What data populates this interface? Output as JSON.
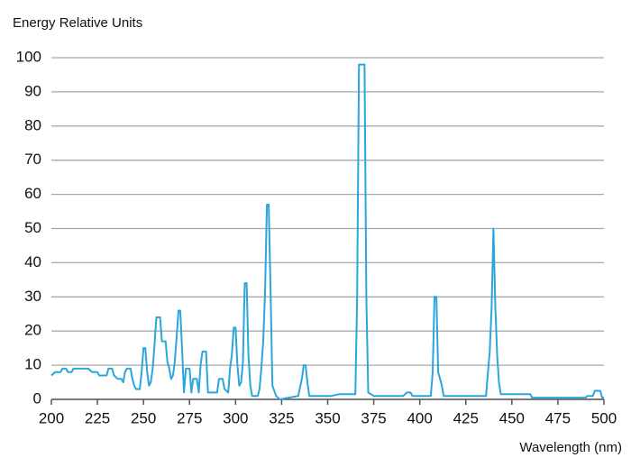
{
  "chart_data": {
    "type": "line",
    "y_label": "Energy Relative Units",
    "x_label": "Wavelength (nm)",
    "color": "#2aa6dc",
    "grid": true,
    "xlim": [
      200,
      500
    ],
    "xticks": [
      200,
      225,
      250,
      275,
      300,
      325,
      350,
      375,
      400,
      425,
      450,
      475,
      500
    ],
    "ylim": [
      0,
      100
    ],
    "yticks": [
      0,
      10,
      20,
      30,
      40,
      50,
      60,
      70,
      80,
      90,
      100
    ],
    "x": [
      200,
      202,
      205,
      206,
      208,
      209,
      211,
      212,
      220,
      222,
      225,
      226,
      230,
      231,
      233,
      234,
      236,
      238,
      239,
      240,
      241,
      243,
      244,
      245,
      246,
      248,
      249,
      250,
      251,
      252,
      253,
      254,
      255,
      256,
      257,
      259,
      260,
      262,
      263,
      264,
      265,
      266,
      267,
      268,
      269,
      270,
      271,
      272,
      273,
      275,
      276,
      277,
      279,
      280,
      281,
      282,
      284,
      285,
      290,
      291,
      293,
      294,
      296,
      297,
      298,
      299,
      300,
      301,
      302,
      303,
      304,
      305,
      306,
      307,
      308,
      309,
      312,
      313,
      314,
      315,
      316,
      317,
      318,
      319,
      320,
      322,
      324,
      334,
      336,
      337,
      338,
      339,
      340,
      352,
      356,
      365,
      366,
      367,
      370,
      371,
      372,
      375,
      391,
      393,
      395,
      396,
      406,
      407,
      408,
      409,
      410,
      412,
      413,
      436,
      437,
      438,
      439,
      440,
      441,
      442,
      443,
      444,
      460,
      461,
      490,
      491,
      494,
      495,
      498,
      499,
      500
    ],
    "values": [
      7,
      8,
      8,
      9,
      9,
      8,
      8,
      9,
      9,
      8,
      8,
      7,
      7,
      9,
      9,
      7,
      6,
      6,
      5,
      8,
      9,
      9,
      6,
      4,
      3,
      3,
      8,
      15,
      15,
      8,
      4,
      5,
      9,
      16,
      24,
      24,
      17,
      17,
      11,
      9,
      6,
      7,
      11,
      18,
      26,
      26,
      14,
      2,
      9,
      9,
      2,
      6,
      6,
      2,
      10,
      14,
      14,
      2,
      2,
      6,
      6,
      3,
      2,
      9,
      13,
      21,
      21,
      10,
      4,
      5,
      11,
      34,
      34,
      13,
      4,
      1,
      1,
      3,
      9,
      17,
      31,
      57,
      57,
      31,
      4,
      1,
      0,
      1,
      6,
      10,
      10,
      5,
      1,
      1,
      1.5,
      1.5,
      30,
      98,
      98,
      30,
      2,
      1,
      1,
      2,
      2,
      1,
      1,
      8,
      30,
      30,
      8,
      4,
      1,
      1,
      8,
      14,
      27,
      50,
      28,
      13,
      5,
      1.5,
      1.5,
      0.5,
      0.5,
      1,
      1,
      2.5,
      2.5,
      0.5,
      0.5
    ]
  }
}
